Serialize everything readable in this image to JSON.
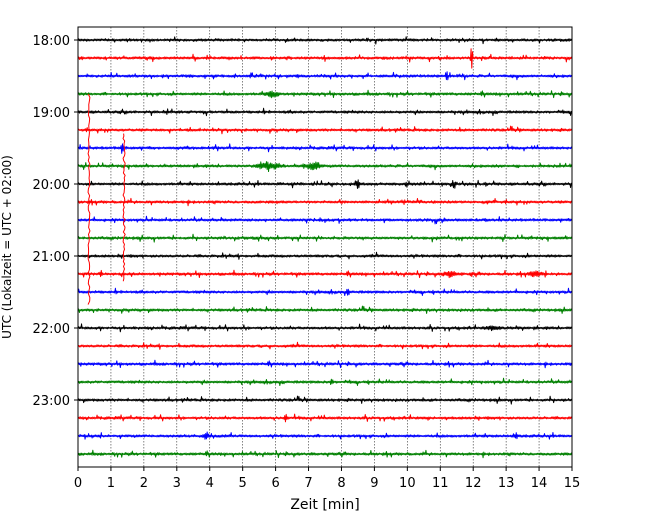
{
  "chart_data": {
    "type": "line",
    "title": "",
    "xlabel": "Zeit  [min]",
    "ylabel": "UTC (Lokalzeit = UTC + 02:00)",
    "xlim": [
      0,
      15
    ],
    "x_ticks": [
      0,
      1,
      2,
      3,
      4,
      5,
      6,
      7,
      8,
      9,
      10,
      11,
      12,
      13,
      14,
      15
    ],
    "x_tick_labels": [
      "0",
      "1",
      "2",
      "3",
      "4",
      "5",
      "6",
      "7",
      "8",
      "9",
      "10",
      "11",
      "12",
      "13",
      "14",
      "15"
    ],
    "grid": "vertical dotted",
    "y_ticks": [
      "18:00",
      "19:00",
      "20:00",
      "21:00",
      "22:00",
      "23:00"
    ],
    "y_tick_rows": [
      0,
      4,
      8,
      12,
      16,
      20
    ],
    "trace_interval_minutes": 15,
    "row_count": 24,
    "row_start_times": [
      "18:00",
      "18:15",
      "18:30",
      "18:45",
      "19:00",
      "19:15",
      "19:30",
      "19:45",
      "20:00",
      "20:15",
      "20:30",
      "20:45",
      "21:00",
      "21:15",
      "21:30",
      "21:45",
      "22:00",
      "22:15",
      "22:30",
      "22:45",
      "23:00",
      "23:15",
      "23:30",
      "23:45"
    ],
    "color_cycle": [
      "#000000",
      "#ff0000",
      "#0000ff",
      "#008000"
    ],
    "events": [
      {
        "row": 1,
        "x": 11.95,
        "amp": 2.0,
        "dur": 0.05,
        "kind": "spike"
      },
      {
        "row": 2,
        "x": 11.2,
        "amp": 0.8,
        "dur": 0.05,
        "kind": "spike"
      },
      {
        "row": 3,
        "x": 5.9,
        "amp": 0.35,
        "dur": 0.3,
        "kind": "burst"
      },
      {
        "row": 7,
        "x": 5.8,
        "amp": 0.55,
        "dur": 0.5,
        "kind": "burst"
      },
      {
        "row": 7,
        "x": 7.15,
        "amp": 0.7,
        "dur": 0.3,
        "kind": "burst"
      },
      {
        "row": 6,
        "x": 1.35,
        "amp": 1.0,
        "dur": 0.05,
        "kind": "spike"
      },
      {
        "row": 8,
        "x": 8.5,
        "amp": 0.45,
        "dur": 0.08,
        "kind": "spike"
      },
      {
        "row": 8,
        "x": 11.4,
        "amp": 0.4,
        "dur": 0.08,
        "kind": "spike"
      },
      {
        "row": 13,
        "x": 11.3,
        "amp": 0.4,
        "dur": 0.3,
        "kind": "burst"
      },
      {
        "row": 13,
        "x": 13.9,
        "amp": 0.35,
        "dur": 0.3,
        "kind": "burst"
      },
      {
        "row": 13,
        "x": 0.7,
        "amp": 0.5,
        "dur": 0.05,
        "kind": "spike"
      },
      {
        "row": 14,
        "x": 8.2,
        "amp": 0.4,
        "dur": 0.06,
        "kind": "spike"
      },
      {
        "row": 16,
        "x": 12.6,
        "amp": 0.35,
        "dur": 0.3,
        "kind": "burst"
      },
      {
        "row": 19,
        "x": 7.7,
        "amp": 0.45,
        "dur": 0.06,
        "kind": "spike"
      },
      {
        "row": 21,
        "x": 6.3,
        "amp": 0.4,
        "dur": 0.06,
        "kind": "spike"
      },
      {
        "row": 22,
        "x": 3.9,
        "amp": 0.4,
        "dur": 0.15,
        "kind": "burst"
      },
      {
        "row": 22,
        "x": 13.3,
        "amp": 0.4,
        "dur": 0.06,
        "kind": "spike"
      }
    ],
    "cross_row_spikes": [
      {
        "x": 0.33,
        "row_from": 3.0,
        "row_to": 14.7,
        "color": "#ff0000"
      },
      {
        "x": 1.4,
        "row_from": 5.2,
        "row_to": 13.4,
        "color": "#ff0000"
      }
    ]
  }
}
